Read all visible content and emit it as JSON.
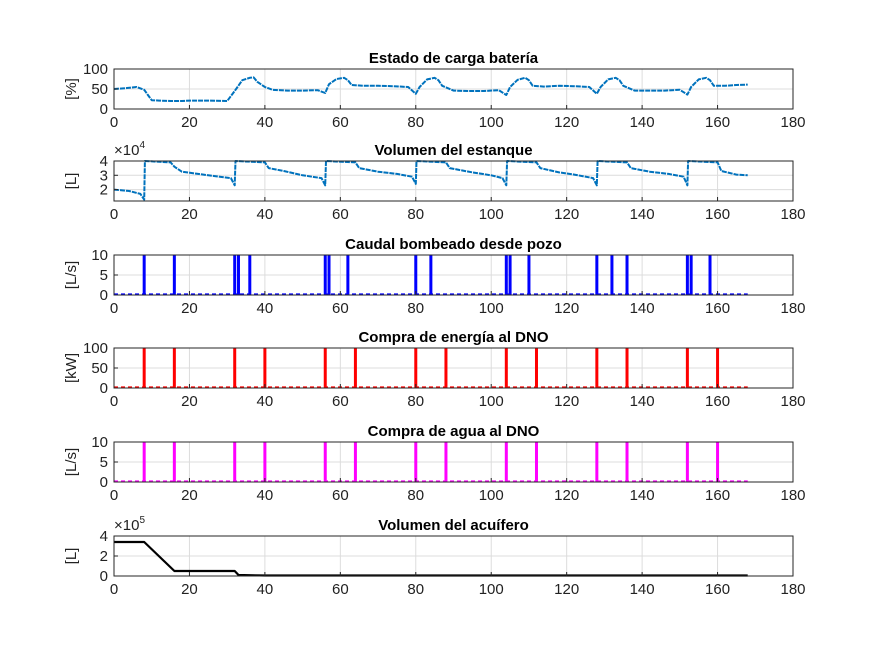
{
  "chart_data": [
    {
      "type": "line",
      "title": "Estado de carga batería",
      "ylabel": "[%]",
      "xlim": [
        0,
        180
      ],
      "ylim": [
        0,
        100
      ],
      "xticks": [
        0,
        20,
        40,
        60,
        80,
        100,
        120,
        140,
        160,
        180
      ],
      "yticks": [
        0,
        50,
        100
      ],
      "color": "#0072BD",
      "series": [
        {
          "values": [
            [
              0,
              50
            ],
            [
              3,
              52
            ],
            [
              6,
              55
            ],
            [
              8,
              48
            ],
            [
              9,
              35
            ],
            [
              10,
              22
            ],
            [
              12,
              21
            ],
            [
              15,
              20
            ],
            [
              18,
              20
            ],
            [
              20,
              21
            ],
            [
              25,
              21
            ],
            [
              30,
              20
            ],
            [
              32,
              45
            ],
            [
              34,
              72
            ],
            [
              36,
              78
            ],
            [
              37,
              79
            ],
            [
              38,
              68
            ],
            [
              40,
              55
            ],
            [
              42,
              48
            ],
            [
              46,
              46
            ],
            [
              50,
              46
            ],
            [
              54,
              47
            ],
            [
              56,
              40
            ],
            [
              57,
              62
            ],
            [
              59,
              75
            ],
            [
              61,
              78
            ],
            [
              62,
              72
            ],
            [
              63,
              60
            ],
            [
              66,
              58
            ],
            [
              70,
              58
            ],
            [
              74,
              57
            ],
            [
              78,
              55
            ],
            [
              80,
              38
            ],
            [
              81,
              55
            ],
            [
              83,
              74
            ],
            [
              85,
              78
            ],
            [
              86,
              72
            ],
            [
              87,
              58
            ],
            [
              90,
              46
            ],
            [
              94,
              45
            ],
            [
              98,
              45
            ],
            [
              102,
              47
            ],
            [
              104,
              35
            ],
            [
              105,
              55
            ],
            [
              107,
              73
            ],
            [
              109,
              78
            ],
            [
              110,
              72
            ],
            [
              111,
              58
            ],
            [
              114,
              56
            ],
            [
              118,
              58
            ],
            [
              122,
              57
            ],
            [
              126,
              55
            ],
            [
              128,
              38
            ],
            [
              129,
              55
            ],
            [
              131,
              74
            ],
            [
              133,
              78
            ],
            [
              134,
              72
            ],
            [
              135,
              58
            ],
            [
              138,
              46
            ],
            [
              142,
              46
            ],
            [
              146,
              46
            ],
            [
              150,
              48
            ],
            [
              152,
              36
            ],
            [
              153,
              55
            ],
            [
              155,
              74
            ],
            [
              157,
              78
            ],
            [
              158,
              72
            ],
            [
              159,
              58
            ],
            [
              162,
              58
            ],
            [
              165,
              60
            ],
            [
              168,
              61
            ]
          ]
        }
      ]
    },
    {
      "type": "line",
      "title": "Volumen del estanque",
      "ylabel": "[L]",
      "exponent": "4",
      "xlim": [
        0,
        180
      ],
      "ylim": [
        1.2,
        4
      ],
      "xticks": [
        0,
        20,
        40,
        60,
        80,
        100,
        120,
        140,
        160,
        180
      ],
      "yticks": [
        2,
        3,
        4
      ],
      "color": "#0072BD",
      "series": [
        {
          "values": [
            [
              0,
              2.0
            ],
            [
              4,
              1.9
            ],
            [
              7,
              1.7
            ],
            [
              8,
              1.3
            ],
            [
              8.2,
              4.0
            ],
            [
              15,
              3.9
            ],
            [
              16,
              3.6
            ],
            [
              18,
              3.25
            ],
            [
              25,
              3.0
            ],
            [
              31,
              2.8
            ],
            [
              32,
              2.3
            ],
            [
              32.2,
              4.0
            ],
            [
              40,
              3.9
            ],
            [
              41,
              3.5
            ],
            [
              45,
              3.3
            ],
            [
              50,
              3.0
            ],
            [
              55,
              2.8
            ],
            [
              56,
              2.3
            ],
            [
              56.2,
              4.0
            ],
            [
              64,
              3.9
            ],
            [
              65,
              3.5
            ],
            [
              70,
              3.25
            ],
            [
              75,
              3.1
            ],
            [
              79,
              2.9
            ],
            [
              80,
              2.4
            ],
            [
              80.2,
              4.0
            ],
            [
              88,
              3.9
            ],
            [
              89,
              3.5
            ],
            [
              95,
              3.2
            ],
            [
              100,
              3.0
            ],
            [
              103,
              2.8
            ],
            [
              104,
              2.3
            ],
            [
              104.2,
              4.0
            ],
            [
              112,
              3.9
            ],
            [
              113,
              3.5
            ],
            [
              118,
              3.2
            ],
            [
              122,
              3.05
            ],
            [
              127,
              2.8
            ],
            [
              128,
              2.3
            ],
            [
              128.2,
              4.0
            ],
            [
              136,
              3.9
            ],
            [
              137,
              3.5
            ],
            [
              142,
              3.25
            ],
            [
              147,
              3.1
            ],
            [
              151,
              2.9
            ],
            [
              152,
              2.3
            ],
            [
              152.2,
              4.0
            ],
            [
              160,
              3.9
            ],
            [
              161,
              3.3
            ],
            [
              165,
              3.05
            ],
            [
              168,
              3.0
            ]
          ]
        }
      ]
    },
    {
      "type": "bar",
      "title": "Caudal bombeado desde pozo",
      "ylabel": "[L/s]",
      "xlim": [
        0,
        180
      ],
      "ylim": [
        0,
        10
      ],
      "xticks": [
        0,
        20,
        40,
        60,
        80,
        100,
        120,
        140,
        160,
        180
      ],
      "yticks": [
        0,
        5,
        10
      ],
      "color": "#0000FF",
      "x": [
        8,
        16,
        32,
        33,
        36,
        56,
        57,
        62,
        80,
        84,
        104,
        105,
        110,
        128,
        132,
        136,
        152,
        153,
        158
      ],
      "values": [
        10,
        10,
        10,
        10,
        10,
        10,
        10,
        10,
        10,
        10,
        10,
        10,
        10,
        10,
        10,
        10,
        10,
        10,
        10
      ]
    },
    {
      "type": "bar",
      "title": "Compra de energía al DNO",
      "ylabel": "[kW]",
      "xlim": [
        0,
        180
      ],
      "ylim": [
        0,
        100
      ],
      "xticks": [
        0,
        20,
        40,
        60,
        80,
        100,
        120,
        140,
        160,
        180
      ],
      "yticks": [
        0,
        50,
        100
      ],
      "color": "#FF0000",
      "x": [
        8,
        16,
        32,
        40,
        56,
        64,
        80,
        88,
        104,
        112,
        128,
        136,
        152,
        160
      ],
      "values": [
        100,
        100,
        100,
        100,
        100,
        100,
        100,
        100,
        100,
        100,
        100,
        100,
        100,
        100
      ]
    },
    {
      "type": "bar",
      "title": "Compra de agua al DNO",
      "ylabel": "[L/s]",
      "xlim": [
        0,
        180
      ],
      "ylim": [
        0,
        10
      ],
      "xticks": [
        0,
        20,
        40,
        60,
        80,
        100,
        120,
        140,
        160,
        180
      ],
      "yticks": [
        0,
        5,
        10
      ],
      "color": "#FF00FF",
      "x": [
        8,
        16,
        32,
        40,
        56,
        64,
        80,
        88,
        104,
        112,
        128,
        136,
        152,
        160
      ],
      "values": [
        10,
        10,
        10,
        10,
        10,
        10,
        10,
        10,
        10,
        10,
        10,
        10,
        10,
        10
      ]
    },
    {
      "type": "line",
      "title": "Volumen del acuífero",
      "ylabel": "[L]",
      "exponent": "5",
      "xlim": [
        0,
        180
      ],
      "ylim": [
        0,
        4
      ],
      "xticks": [
        0,
        20,
        40,
        60,
        80,
        100,
        120,
        140,
        160,
        180
      ],
      "yticks": [
        0,
        2,
        4
      ],
      "color": "#000000",
      "series": [
        {
          "values": [
            [
              0,
              3.4
            ],
            [
              8,
              3.4
            ],
            [
              16,
              0.5
            ],
            [
              32,
              0.5
            ],
            [
              33,
              0.1
            ],
            [
              40,
              0.05
            ],
            [
              60,
              0.05
            ],
            [
              100,
              0.05
            ],
            [
              140,
              0.05
            ],
            [
              168,
              0.05
            ]
          ]
        }
      ]
    }
  ]
}
